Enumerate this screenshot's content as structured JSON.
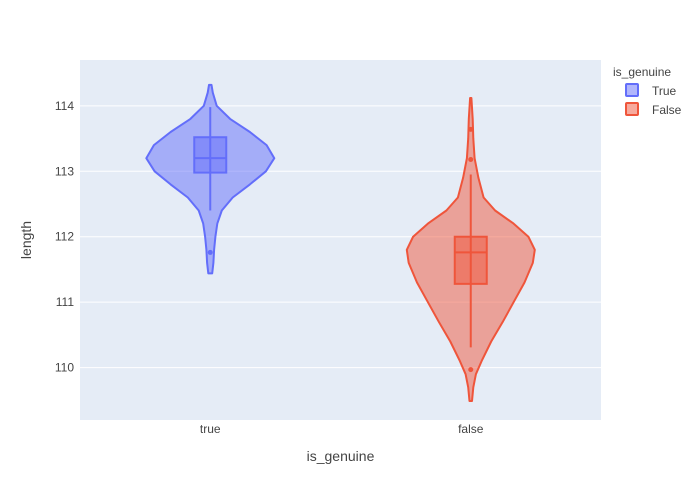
{
  "chart_data": {
    "type": "violin",
    "xlabel": "is_genuine",
    "ylabel": "length",
    "categories": [
      "true",
      "false"
    ],
    "ylim": [
      109.2,
      114.7
    ],
    "yticks": [
      110,
      111,
      112,
      113,
      114
    ],
    "grid": true,
    "legend": {
      "title": "is_genuine",
      "placement": "top-right",
      "entries": [
        "True",
        "False"
      ]
    },
    "series": [
      {
        "name": "True",
        "category": "true",
        "color": "#636efa",
        "min": 111.44,
        "max": 114.32,
        "q1": 112.98,
        "median": 113.2,
        "q3": 113.52,
        "whisker_low": 112.4,
        "whisker_high": 113.98,
        "outliers": [
          111.76
        ],
        "density": [
          [
            111.44,
            0.03
          ],
          [
            111.6,
            0.05
          ],
          [
            111.8,
            0.06
          ],
          [
            112.0,
            0.08
          ],
          [
            112.2,
            0.11
          ],
          [
            112.4,
            0.18
          ],
          [
            112.6,
            0.35
          ],
          [
            112.8,
            0.62
          ],
          [
            113.0,
            0.87
          ],
          [
            113.2,
            1.0
          ],
          [
            113.4,
            0.88
          ],
          [
            113.6,
            0.62
          ],
          [
            113.8,
            0.31
          ],
          [
            114.0,
            0.1
          ],
          [
            114.2,
            0.04
          ],
          [
            114.32,
            0.02
          ]
        ]
      },
      {
        "name": "False",
        "category": "false",
        "color": "#ef553b",
        "min": 109.49,
        "max": 114.12,
        "q1": 111.28,
        "median": 111.76,
        "q3": 112.0,
        "whisker_low": 110.31,
        "whisker_high": 112.95,
        "outliers": [
          113.64,
          113.18,
          109.97
        ],
        "density": [
          [
            109.49,
            0.02
          ],
          [
            109.7,
            0.04
          ],
          [
            109.9,
            0.08
          ],
          [
            110.1,
            0.17
          ],
          [
            110.4,
            0.32
          ],
          [
            110.7,
            0.5
          ],
          [
            111.0,
            0.67
          ],
          [
            111.3,
            0.84
          ],
          [
            111.6,
            0.97
          ],
          [
            111.8,
            1.0
          ],
          [
            112.0,
            0.9
          ],
          [
            112.2,
            0.67
          ],
          [
            112.4,
            0.38
          ],
          [
            112.6,
            0.2
          ],
          [
            112.9,
            0.12
          ],
          [
            113.2,
            0.06
          ],
          [
            113.5,
            0.04
          ],
          [
            113.8,
            0.03
          ],
          [
            114.12,
            0.01
          ]
        ]
      }
    ]
  }
}
